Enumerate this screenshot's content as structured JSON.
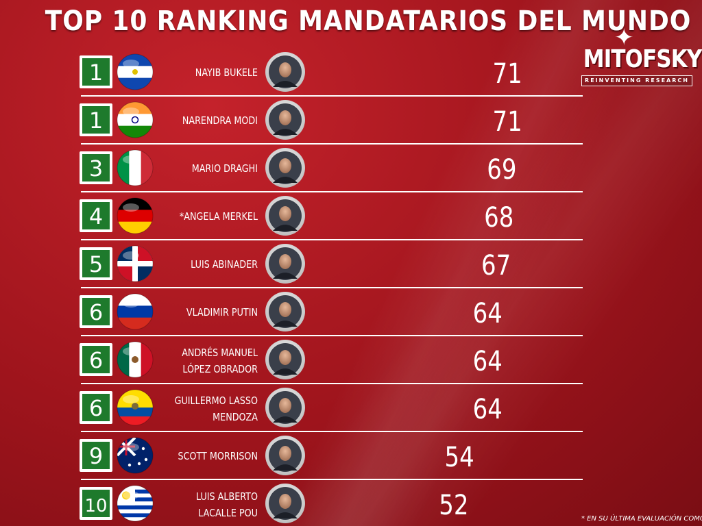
{
  "title": "TOP 10 RANKING MANDATARIOS DEL MUNDO",
  "logo": {
    "brand": "MITOFSKY",
    "tagline": "REINVENTING RESEARCH"
  },
  "footnote": "* EN SU ÚLTIMA EVALUACIÓN COMO CA",
  "colors": {
    "background": "#a8161e",
    "bar_dark": "#157a25",
    "bar_light": "#1fa34a",
    "rank_box": "#1e7a2c",
    "divider": "#ffffff"
  },
  "chart_data": {
    "type": "bar",
    "orientation": "horizontal",
    "title": "TOP 10 RANKING MANDATARIOS DEL MUNDO",
    "rows": [
      {
        "rank": "1",
        "name": [
          "NAYIB BUKELE"
        ],
        "country": "El Salvador",
        "flag": "flag-el-salvador",
        "value": 71
      },
      {
        "rank": "1",
        "name": [
          "NARENDRA MODI"
        ],
        "country": "India",
        "flag": "flag-india",
        "value": 71
      },
      {
        "rank": "3",
        "name": [
          "MARIO DRAGHI"
        ],
        "country": "Italy",
        "flag": "flag-italy",
        "value": 69
      },
      {
        "rank": "4",
        "name": [
          "*ANGELA MERKEL"
        ],
        "country": "Germany",
        "flag": "flag-germany",
        "value": 68
      },
      {
        "rank": "5",
        "name": [
          "LUIS ABINADER"
        ],
        "country": "Dominican Republic",
        "flag": "flag-dominican",
        "value": 67
      },
      {
        "rank": "6",
        "name": [
          "VLADIMIR PUTIN"
        ],
        "country": "Russia",
        "flag": "flag-russia",
        "value": 64
      },
      {
        "rank": "6",
        "name": [
          "ANDRÉS MANUEL",
          "LÓPEZ OBRADOR"
        ],
        "country": "Mexico",
        "flag": "flag-mexico",
        "value": 64
      },
      {
        "rank": "6",
        "name": [
          "GUILLERMO LASSO",
          "MENDOZA"
        ],
        "country": "Ecuador",
        "flag": "flag-ecuador",
        "value": 64
      },
      {
        "rank": "9",
        "name": [
          "SCOTT MORRISON"
        ],
        "country": "Australia",
        "flag": "flag-australia",
        "value": 54
      },
      {
        "rank": "10",
        "name": [
          "LUIS ALBERTO",
          "LACALLE POU"
        ],
        "country": "Uruguay",
        "flag": "flag-uruguay",
        "value": 52
      }
    ],
    "xlim": [
      0,
      100
    ],
    "grid": false,
    "legend": "none"
  }
}
